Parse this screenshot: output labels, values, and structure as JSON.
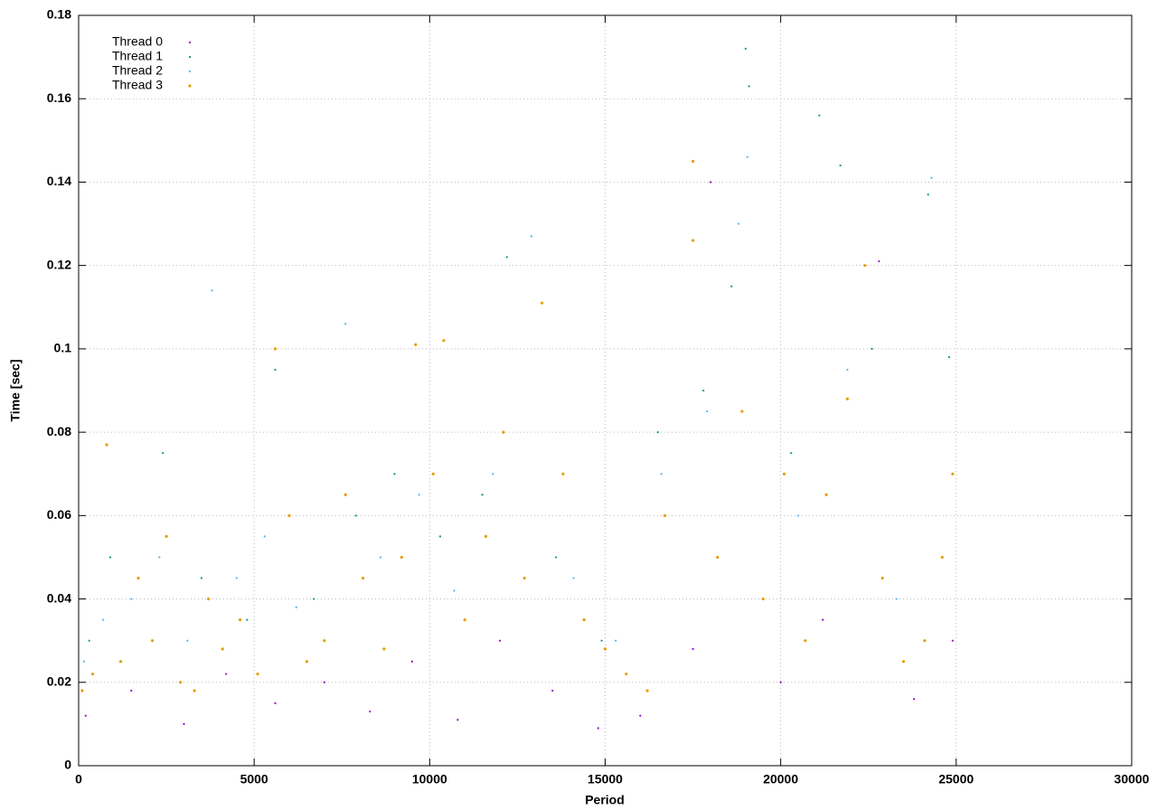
{
  "chart_data": {
    "type": "scatter",
    "x_label": "Period",
    "y_label": "Time [sec]",
    "xlim": [
      0,
      30000
    ],
    "ylim": [
      0,
      0.18
    ],
    "xticks": [
      0,
      5000,
      10000,
      15000,
      20000,
      25000,
      30000
    ],
    "yticks": [
      0,
      0.02,
      0.04,
      0.06,
      0.08,
      0.1,
      0.12,
      0.14,
      0.16,
      0.18
    ],
    "grid": true,
    "legend": "top-left",
    "series": [
      {
        "name": "Thread 0",
        "color": "#9400d3",
        "x": [
          200,
          1500,
          3000,
          4200,
          5600,
          7000,
          8300,
          9500,
          10800,
          12000,
          13500,
          14800,
          16000,
          17500,
          18000,
          20000,
          21200,
          22800,
          23800,
          24900
        ],
        "values": [
          0.012,
          0.018,
          0.01,
          0.022,
          0.015,
          0.02,
          0.013,
          0.025,
          0.011,
          0.03,
          0.018,
          0.009,
          0.012,
          0.028,
          0.14,
          0.02,
          0.035,
          0.121,
          0.016,
          0.03
        ]
      },
      {
        "name": "Thread 1",
        "color": "#009e73",
        "x": [
          300,
          900,
          2400,
          3500,
          4800,
          5600,
          6700,
          7900,
          9000,
          10300,
          11500,
          12200,
          13600,
          14900,
          16500,
          17800,
          18600,
          19000,
          19100,
          20300,
          21100,
          21700,
          22600,
          24200,
          24800
        ],
        "values": [
          0.03,
          0.05,
          0.075,
          0.045,
          0.035,
          0.095,
          0.04,
          0.06,
          0.07,
          0.055,
          0.065,
          0.122,
          0.05,
          0.03,
          0.08,
          0.09,
          0.115,
          0.172,
          0.163,
          0.075,
          0.156,
          0.144,
          0.1,
          0.137,
          0.098
        ]
      },
      {
        "name": "Thread 2",
        "color": "#56b4e9",
        "x": [
          150,
          700,
          1500,
          2300,
          3100,
          3800,
          4500,
          5300,
          6200,
          7600,
          8600,
          9700,
          10700,
          11800,
          12900,
          14100,
          15300,
          16600,
          17900,
          18800,
          19050,
          20500,
          21900,
          23300,
          24300
        ],
        "values": [
          0.025,
          0.035,
          0.04,
          0.05,
          0.03,
          0.114,
          0.045,
          0.055,
          0.038,
          0.106,
          0.05,
          0.065,
          0.042,
          0.07,
          0.127,
          0.045,
          0.03,
          0.07,
          0.085,
          0.13,
          0.146,
          0.06,
          0.095,
          0.04,
          0.141
        ]
      },
      {
        "name": "Thread 3",
        "color": "#e69f00",
        "x": [
          100,
          400,
          800,
          1200,
          1700,
          2100,
          2500,
          2900,
          3300,
          3700,
          4100,
          4600,
          5100,
          5600,
          6000,
          6500,
          7000,
          7600,
          8100,
          8700,
          9200,
          9600,
          10100,
          10400,
          11000,
          11600,
          12100,
          12700,
          13200,
          13800,
          14400,
          15000,
          15600,
          16200,
          16700,
          17500,
          17500,
          18200,
          18900,
          19500,
          20100,
          20700,
          21300,
          21900,
          22400,
          22900,
          23500,
          24100,
          24600,
          24900
        ],
        "values": [
          0.018,
          0.022,
          0.077,
          0.025,
          0.045,
          0.03,
          0.055,
          0.02,
          0.018,
          0.04,
          0.028,
          0.035,
          0.022,
          0.1,
          0.06,
          0.025,
          0.03,
          0.065,
          0.045,
          0.028,
          0.05,
          0.101,
          0.07,
          0.102,
          0.035,
          0.055,
          0.08,
          0.045,
          0.111,
          0.07,
          0.035,
          0.028,
          0.022,
          0.018,
          0.06,
          0.145,
          0.126,
          0.05,
          0.085,
          0.04,
          0.07,
          0.03,
          0.065,
          0.088,
          0.12,
          0.045,
          0.025,
          0.03,
          0.05,
          0.07
        ]
      }
    ]
  }
}
